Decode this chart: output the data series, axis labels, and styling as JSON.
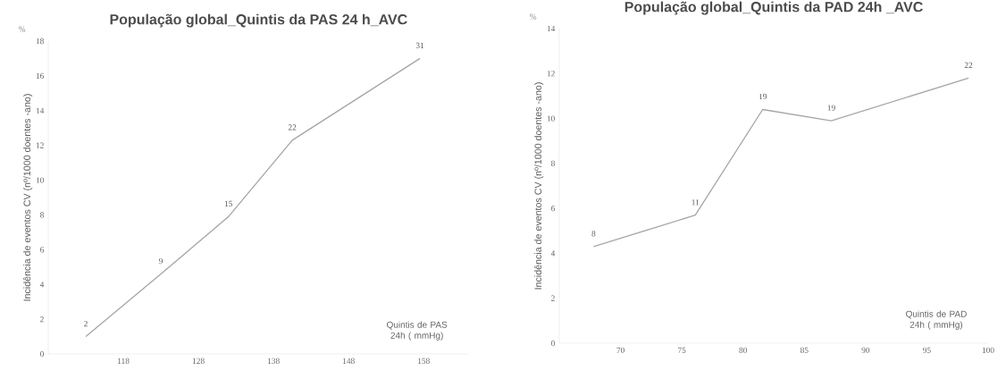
{
  "chart_data": [
    {
      "type": "line",
      "title": "População global_Quintis da PAS 24 h_AVC",
      "xlabel": "Quintis de PAS 24h ( mmHg)",
      "ylabel": "Incidência de eventos CV  (nº/1000 doentes -ano)",
      "x": [
        113,
        123,
        132,
        140.5,
        157.5
      ],
      "values": [
        1.0,
        4.6,
        7.9,
        12.3,
        17.0
      ],
      "color": "#a6a6a6",
      "xlim": [
        108,
        164
      ],
      "xticks": [
        118,
        128,
        138,
        148,
        158
      ],
      "ylim": [
        0,
        18
      ],
      "yticks": [
        0,
        2,
        4,
        6,
        8,
        10,
        12,
        14,
        16,
        18
      ],
      "annotations": [
        "%",
        {
          "text": "2",
          "x": 113,
          "y": 1.0
        },
        {
          "text": "9",
          "x": 123,
          "y": 4.6
        },
        {
          "text": "15",
          "x": 132,
          "y": 7.9
        },
        {
          "text": "22",
          "x": 140.5,
          "y": 12.3
        },
        {
          "text": "31",
          "x": 157.5,
          "y": 17.0
        }
      ]
    },
    {
      "type": "line",
      "title": "População global_Quintis da PAD 24h _AVC",
      "xlabel": "Quintis de PAD 24h ( mmHg)",
      "ylabel": "Incidência de eventos CV  (nº/1000 doentes -ano)",
      "x": [
        67.8,
        76.1,
        81.6,
        87.2,
        98.4
      ],
      "values": [
        4.3,
        5.7,
        10.4,
        9.9,
        11.8
      ],
      "color": "#a6a6a6",
      "xlim": [
        65,
        100
      ],
      "xticks": [
        70,
        75,
        80,
        85,
        90,
        95,
        100
      ],
      "ylim": [
        0,
        14
      ],
      "yticks": [
        0,
        2,
        4,
        6,
        8,
        10,
        12,
        14
      ],
      "annotations": [
        "%",
        {
          "text": "8",
          "x": 67.8,
          "y": 4.3
        },
        {
          "text": "11",
          "x": 76.1,
          "y": 5.7
        },
        {
          "text": "19",
          "x": 81.6,
          "y": 10.4
        },
        {
          "text": "19",
          "x": 87.2,
          "y": 9.9
        },
        {
          "text": "22",
          "x": 98.4,
          "y": 11.8
        }
      ]
    }
  ]
}
